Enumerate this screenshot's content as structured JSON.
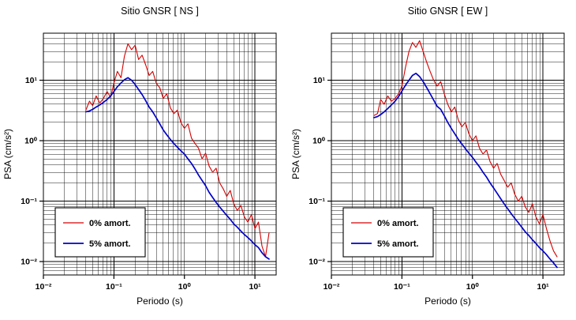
{
  "page": {
    "background": "#ffffff"
  },
  "chart_data": [
    {
      "type": "line",
      "title": "Sitio GNSR [ NS ]",
      "xlabel": "Periodo (s)",
      "ylabel": "PSA (cm/s²)",
      "xscale": "log",
      "yscale": "log",
      "xlim": [
        0.01,
        20
      ],
      "ylim": [
        0.006,
        60
      ],
      "grid": "major+minor",
      "x_major_ticks": [
        0.01,
        0.1,
        1,
        10
      ],
      "x_tick_labels": [
        "10⁻²",
        "10⁻¹",
        "10⁰",
        "10¹"
      ],
      "y_major_ticks": [
        0.01,
        0.1,
        1,
        10
      ],
      "y_tick_labels": [
        "10⁻²",
        "10⁻¹",
        "10⁰",
        "10¹"
      ],
      "legend": {
        "position": "lower-left",
        "entries": [
          {
            "label": "0% amort.",
            "color": "#d40000"
          },
          {
            "label": "5% amort.",
            "color": "#0000c8"
          }
        ]
      },
      "series": [
        {
          "name": "0% amort.",
          "color": "#d40000",
          "width": 1.1,
          "points": [
            [
              0.04,
              3.2
            ],
            [
              0.045,
              4.5
            ],
            [
              0.05,
              3.8
            ],
            [
              0.056,
              5.5
            ],
            [
              0.063,
              4.2
            ],
            [
              0.071,
              5.0
            ],
            [
              0.08,
              6.5
            ],
            [
              0.09,
              5.2
            ],
            [
              0.1,
              9.0
            ],
            [
              0.112,
              14
            ],
            [
              0.126,
              11
            ],
            [
              0.141,
              25
            ],
            [
              0.158,
              40
            ],
            [
              0.178,
              32
            ],
            [
              0.2,
              38
            ],
            [
              0.224,
              22
            ],
            [
              0.251,
              26
            ],
            [
              0.282,
              18
            ],
            [
              0.316,
              12
            ],
            [
              0.355,
              14
            ],
            [
              0.398,
              9
            ],
            [
              0.447,
              7.5
            ],
            [
              0.501,
              5.0
            ],
            [
              0.562,
              6.0
            ],
            [
              0.631,
              3.5
            ],
            [
              0.708,
              2.8
            ],
            [
              0.794,
              3.2
            ],
            [
              0.891,
              2.0
            ],
            [
              1.0,
              1.6
            ],
            [
              1.122,
              1.9
            ],
            [
              1.259,
              1.1
            ],
            [
              1.413,
              0.9
            ],
            [
              1.585,
              0.75
            ],
            [
              1.778,
              0.5
            ],
            [
              1.995,
              0.62
            ],
            [
              2.239,
              0.38
            ],
            [
              2.512,
              0.3
            ],
            [
              2.818,
              0.35
            ],
            [
              3.162,
              0.2
            ],
            [
              3.548,
              0.16
            ],
            [
              3.981,
              0.12
            ],
            [
              4.467,
              0.15
            ],
            [
              5.012,
              0.09
            ],
            [
              5.623,
              0.07
            ],
            [
              6.31,
              0.085
            ],
            [
              7.079,
              0.055
            ],
            [
              7.943,
              0.045
            ],
            [
              8.913,
              0.06
            ],
            [
              10.0,
              0.035
            ],
            [
              11.22,
              0.045
            ],
            [
              12.59,
              0.018
            ],
            [
              14.13,
              0.012
            ],
            [
              15.85,
              0.03
            ]
          ]
        },
        {
          "name": "5% amort.",
          "color": "#0000c8",
          "width": 1.7,
          "points": [
            [
              0.04,
              3.0
            ],
            [
              0.045,
              3.1
            ],
            [
              0.05,
              3.3
            ],
            [
              0.056,
              3.6
            ],
            [
              0.063,
              3.9
            ],
            [
              0.071,
              4.3
            ],
            [
              0.08,
              4.8
            ],
            [
              0.09,
              5.5
            ],
            [
              0.1,
              6.5
            ],
            [
              0.112,
              7.8
            ],
            [
              0.126,
              9.0
            ],
            [
              0.141,
              10.2
            ],
            [
              0.158,
              11.0
            ],
            [
              0.178,
              10.0
            ],
            [
              0.2,
              8.5
            ],
            [
              0.224,
              7.0
            ],
            [
              0.251,
              5.8
            ],
            [
              0.282,
              4.6
            ],
            [
              0.316,
              3.6
            ],
            [
              0.355,
              3.0
            ],
            [
              0.398,
              2.4
            ],
            [
              0.447,
              1.9
            ],
            [
              0.501,
              1.5
            ],
            [
              0.562,
              1.25
            ],
            [
              0.631,
              1.05
            ],
            [
              0.708,
              0.9
            ],
            [
              0.794,
              0.78
            ],
            [
              0.891,
              0.68
            ],
            [
              1.0,
              0.6
            ],
            [
              1.122,
              0.5
            ],
            [
              1.259,
              0.42
            ],
            [
              1.413,
              0.34
            ],
            [
              1.585,
              0.27
            ],
            [
              1.778,
              0.22
            ],
            [
              1.995,
              0.18
            ],
            [
              2.239,
              0.14
            ],
            [
              2.512,
              0.115
            ],
            [
              2.818,
              0.095
            ],
            [
              3.162,
              0.08
            ],
            [
              3.548,
              0.068
            ],
            [
              3.981,
              0.058
            ],
            [
              4.467,
              0.05
            ],
            [
              5.012,
              0.042
            ],
            [
              5.623,
              0.037
            ],
            [
              6.31,
              0.032
            ],
            [
              7.079,
              0.028
            ],
            [
              7.943,
              0.025
            ],
            [
              8.913,
              0.022
            ],
            [
              10.0,
              0.019
            ],
            [
              11.22,
              0.017
            ],
            [
              12.59,
              0.014
            ],
            [
              14.13,
              0.012
            ],
            [
              15.85,
              0.011
            ]
          ]
        }
      ]
    },
    {
      "type": "line",
      "title": "Sitio GNSR [ EW ]",
      "xlabel": "Periodo (s)",
      "ylabel": "PSA (cm/s²)",
      "xscale": "log",
      "yscale": "log",
      "xlim": [
        0.01,
        20
      ],
      "ylim": [
        0.006,
        60
      ],
      "grid": "major+minor",
      "x_major_ticks": [
        0.01,
        0.1,
        1,
        10
      ],
      "x_tick_labels": [
        "10⁻²",
        "10⁻¹",
        "10⁰",
        "10¹"
      ],
      "y_major_ticks": [
        0.01,
        0.1,
        1,
        10
      ],
      "y_tick_labels": [
        "10⁻²",
        "10⁻¹",
        "10⁰",
        "10¹"
      ],
      "legend": {
        "position": "lower-left",
        "entries": [
          {
            "label": "0% amort.",
            "color": "#d40000"
          },
          {
            "label": "5% amort.",
            "color": "#0000c8"
          }
        ]
      },
      "series": [
        {
          "name": "0% amort.",
          "color": "#d40000",
          "width": 1.1,
          "points": [
            [
              0.04,
              2.6
            ],
            [
              0.045,
              2.8
            ],
            [
              0.05,
              4.8
            ],
            [
              0.056,
              4.0
            ],
            [
              0.063,
              5.5
            ],
            [
              0.071,
              4.5
            ],
            [
              0.08,
              5.0
            ],
            [
              0.09,
              6.0
            ],
            [
              0.1,
              8.0
            ],
            [
              0.112,
              16
            ],
            [
              0.126,
              30
            ],
            [
              0.141,
              42
            ],
            [
              0.158,
              35
            ],
            [
              0.178,
              45
            ],
            [
              0.2,
              30
            ],
            [
              0.224,
              20
            ],
            [
              0.251,
              14
            ],
            [
              0.282,
              10
            ],
            [
              0.316,
              8.0
            ],
            [
              0.355,
              9.5
            ],
            [
              0.398,
              6.0
            ],
            [
              0.447,
              4.0
            ],
            [
              0.501,
              3.0
            ],
            [
              0.562,
              3.6
            ],
            [
              0.631,
              2.2
            ],
            [
              0.708,
              1.7
            ],
            [
              0.794,
              2.0
            ],
            [
              0.891,
              1.3
            ],
            [
              1.0,
              1.0
            ],
            [
              1.122,
              1.2
            ],
            [
              1.259,
              0.75
            ],
            [
              1.413,
              0.6
            ],
            [
              1.585,
              0.7
            ],
            [
              1.778,
              0.45
            ],
            [
              1.995,
              0.35
            ],
            [
              2.239,
              0.42
            ],
            [
              2.512,
              0.28
            ],
            [
              2.818,
              0.22
            ],
            [
              3.162,
              0.17
            ],
            [
              3.548,
              0.2
            ],
            [
              3.981,
              0.13
            ],
            [
              4.467,
              0.1
            ],
            [
              5.012,
              0.12
            ],
            [
              5.623,
              0.08
            ],
            [
              6.31,
              0.065
            ],
            [
              7.079,
              0.09
            ],
            [
              7.943,
              0.055
            ],
            [
              8.913,
              0.042
            ],
            [
              10.0,
              0.06
            ],
            [
              11.22,
              0.035
            ],
            [
              12.59,
              0.022
            ],
            [
              14.13,
              0.015
            ],
            [
              15.85,
              0.012
            ]
          ]
        },
        {
          "name": "5% amort.",
          "color": "#0000c8",
          "width": 1.7,
          "points": [
            [
              0.04,
              2.4
            ],
            [
              0.045,
              2.5
            ],
            [
              0.05,
              2.7
            ],
            [
              0.056,
              3.0
            ],
            [
              0.063,
              3.4
            ],
            [
              0.071,
              3.9
            ],
            [
              0.08,
              4.5
            ],
            [
              0.09,
              5.4
            ],
            [
              0.1,
              6.6
            ],
            [
              0.112,
              8.2
            ],
            [
              0.126,
              10.0
            ],
            [
              0.141,
              12.0
            ],
            [
              0.158,
              13.0
            ],
            [
              0.178,
              11.5
            ],
            [
              0.2,
              9.5
            ],
            [
              0.224,
              7.6
            ],
            [
              0.251,
              6.0
            ],
            [
              0.282,
              4.7
            ],
            [
              0.316,
              3.7
            ],
            [
              0.355,
              3.3
            ],
            [
              0.398,
              2.6
            ],
            [
              0.447,
              2.0
            ],
            [
              0.501,
              1.6
            ],
            [
              0.562,
              1.3
            ],
            [
              0.631,
              1.05
            ],
            [
              0.708,
              0.88
            ],
            [
              0.794,
              0.74
            ],
            [
              0.891,
              0.62
            ],
            [
              1.0,
              0.53
            ],
            [
              1.122,
              0.44
            ],
            [
              1.259,
              0.37
            ],
            [
              1.413,
              0.3
            ],
            [
              1.585,
              0.25
            ],
            [
              1.778,
              0.2
            ],
            [
              1.995,
              0.165
            ],
            [
              2.239,
              0.135
            ],
            [
              2.512,
              0.11
            ],
            [
              2.818,
              0.09
            ],
            [
              3.162,
              0.075
            ],
            [
              3.548,
              0.062
            ],
            [
              3.981,
              0.052
            ],
            [
              4.467,
              0.044
            ],
            [
              5.012,
              0.037
            ],
            [
              5.623,
              0.031
            ],
            [
              6.31,
              0.027
            ],
            [
              7.079,
              0.023
            ],
            [
              7.943,
              0.02
            ],
            [
              8.913,
              0.017
            ],
            [
              10.0,
              0.015
            ],
            [
              11.22,
              0.013
            ],
            [
              12.59,
              0.011
            ],
            [
              14.13,
              0.0095
            ],
            [
              15.85,
              0.008
            ]
          ]
        }
      ]
    }
  ]
}
